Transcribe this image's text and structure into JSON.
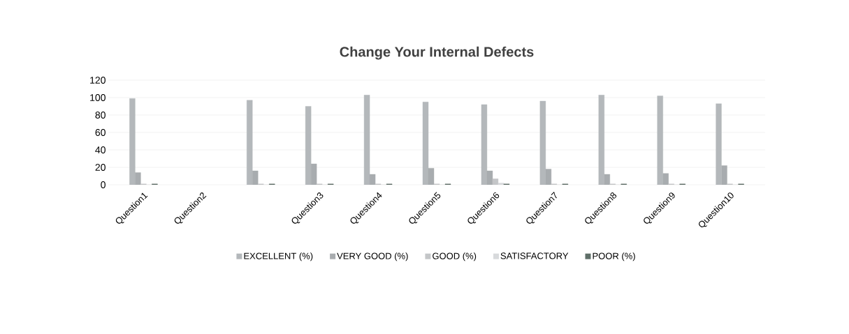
{
  "chart_data": {
    "type": "bar",
    "title": "Change Your Internal Defects",
    "categories": [
      "Question1",
      "Question2",
      null,
      "Question3",
      "Question4",
      "Question5",
      "Question6",
      "Question7",
      "Question8",
      "Question9",
      "Question10"
    ],
    "series": [
      {
        "name": "EXCELLENT (%)",
        "color": "#b4b8bb",
        "values": [
          99,
          null,
          97,
          90,
          103,
          95,
          92,
          96,
          103,
          102,
          93
        ]
      },
      {
        "name": "VERY GOOD (%)",
        "color": "#a8acaf",
        "values": [
          14,
          null,
          16,
          24,
          12,
          19,
          16,
          18,
          12,
          13,
          22
        ]
      },
      {
        "name": "GOOD (%)",
        "color": "#c4c6c8",
        "values": [
          1,
          null,
          1,
          1,
          1,
          1,
          7,
          1,
          1,
          1,
          1
        ]
      },
      {
        "name": "SATISFACTORY",
        "color": "#d8dadc",
        "values": [
          0,
          null,
          0,
          0,
          0,
          0,
          2,
          0,
          0,
          0,
          0
        ]
      },
      {
        "name": "POOR (%)",
        "color": "#5f6f68",
        "values": [
          1,
          null,
          1,
          1,
          1,
          1,
          1,
          1,
          1,
          1,
          1
        ]
      }
    ],
    "ylim": [
      0,
      120
    ],
    "yticks": [
      0,
      20,
      40,
      60,
      80,
      100,
      120
    ],
    "grid": "y",
    "legend": "bottom"
  }
}
